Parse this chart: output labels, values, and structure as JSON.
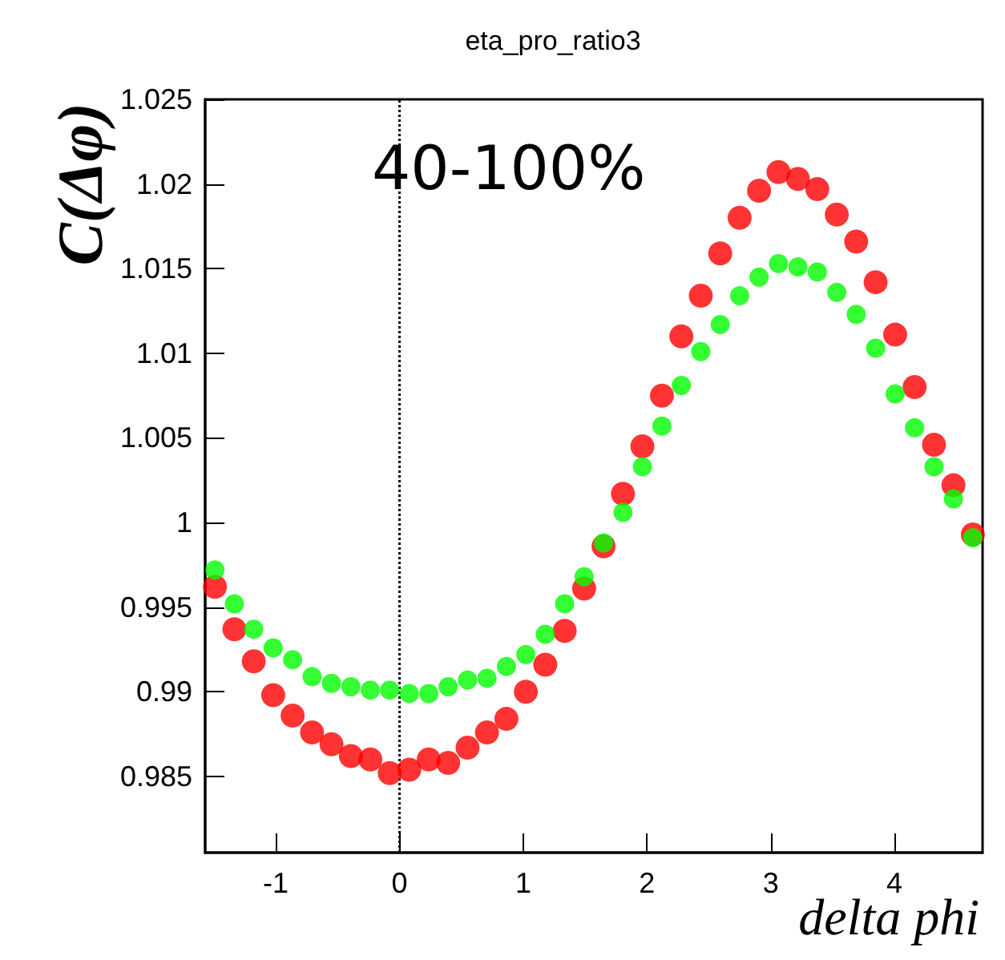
{
  "chart_data": {
    "type": "scatter",
    "title": "eta_pro_ratio3",
    "xlabel": "delta phi",
    "ylabel": "C(Δφ)",
    "annotations": [
      "40-100%"
    ],
    "x": [
      -1.492,
      -1.335,
      -1.178,
      -1.021,
      -0.864,
      -0.707,
      -0.55,
      -0.393,
      -0.236,
      -0.079,
      0.079,
      0.236,
      0.393,
      0.55,
      0.707,
      0.864,
      1.021,
      1.178,
      1.335,
      1.492,
      1.649,
      1.806,
      1.963,
      2.121,
      2.278,
      2.435,
      2.592,
      2.749,
      2.906,
      3.063,
      3.22,
      3.377,
      3.534,
      3.691,
      3.848,
      4.006,
      4.163,
      4.32,
      4.477,
      4.634
    ],
    "series": [
      {
        "color": "#ff0000",
        "values": [
          0.9962,
          0.9937,
          0.9918,
          0.9898,
          0.9886,
          0.9876,
          0.9869,
          0.9862,
          0.986,
          0.9852,
          0.9854,
          0.986,
          0.9858,
          0.9867,
          0.9876,
          0.9884,
          0.99,
          0.9916,
          0.9936,
          0.9961,
          0.9986,
          1.0017,
          1.0045,
          1.0075,
          1.011,
          1.0134,
          1.0159,
          1.018,
          1.0196,
          1.0207,
          1.0203,
          1.0197,
          1.0182,
          1.0166,
          1.0142,
          1.0111,
          1.008,
          1.0046,
          1.0022,
          0.9993
        ]
      },
      {
        "color": "#00ff00",
        "values": [
          0.9972,
          0.9952,
          0.9937,
          0.9926,
          0.9919,
          0.9909,
          0.9905,
          0.9903,
          0.9901,
          0.9901,
          0.9899,
          0.9899,
          0.9903,
          0.9907,
          0.9908,
          0.9915,
          0.9922,
          0.9934,
          0.9952,
          0.9968,
          0.9988,
          1.0006,
          1.0033,
          1.0057,
          1.0081,
          1.0101,
          1.0117,
          1.0134,
          1.0145,
          1.0153,
          1.0151,
          1.0148,
          1.0136,
          1.0123,
          1.0103,
          1.0076,
          1.0056,
          1.0033,
          1.0014,
          0.9991
        ]
      }
    ],
    "xlim": [
      -1.5708,
      4.7124
    ],
    "xticks": [
      -1,
      0,
      1,
      2,
      3,
      4
    ],
    "ylim": [
      0.9805,
      1.025
    ],
    "yticks": [
      0.985,
      0.99,
      0.995,
      1,
      1.005,
      1.01,
      1.015,
      1.02,
      1.025
    ],
    "ref_lines": [
      {
        "axis": "x",
        "value": 0,
        "color": "#000000",
        "line_style": "dotted"
      }
    ],
    "marker": "circle",
    "grid": false
  }
}
